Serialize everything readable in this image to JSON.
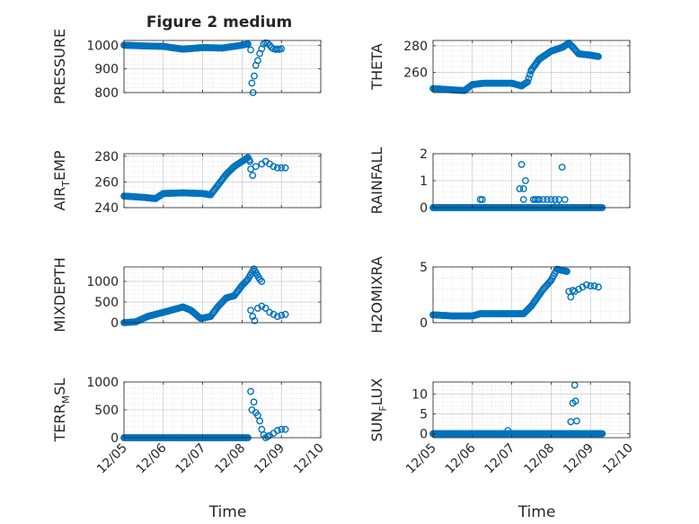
{
  "title": "Figure 2 medium",
  "xlabel": "Time",
  "xtick_labels": [
    "12/05",
    "12/06",
    "12/07",
    "12/08",
    "12/09",
    "12/10"
  ],
  "marker_color": "#0072BD",
  "chart_data": [
    {
      "id": "pressure",
      "type": "scatter",
      "ylabel": {
        "main": "PRESSURE"
      },
      "xlim": [
        0,
        5
      ],
      "ylim": [
        800,
        1020
      ],
      "yticks": [
        800,
        900,
        1000
      ],
      "ytick_labels": [
        "800",
        "900",
        "1000"
      ],
      "gen": {
        "kind": "segments",
        "step": 0.03,
        "segments": [
          [
            0,
            1000
          ],
          [
            0.5,
            997
          ],
          [
            1.0,
            995
          ],
          [
            1.5,
            983
          ],
          [
            2.0,
            990
          ],
          [
            2.5,
            988
          ],
          [
            3.0,
            1000
          ],
          [
            3.15,
            1005
          ]
        ]
      },
      "extra_points": [
        [
          3.22,
          980
        ],
        [
          3.25,
          840
        ],
        [
          3.28,
          800
        ],
        [
          3.31,
          870
        ],
        [
          3.35,
          915
        ],
        [
          3.4,
          935
        ],
        [
          3.45,
          965
        ],
        [
          3.5,
          985
        ],
        [
          3.55,
          1005
        ],
        [
          3.6,
          1010
        ],
        [
          3.65,
          1008
        ],
        [
          3.7,
          1000
        ],
        [
          3.75,
          990
        ],
        [
          3.8,
          985
        ],
        [
          3.85,
          982
        ],
        [
          3.9,
          983
        ],
        [
          3.95,
          982
        ],
        [
          4.0,
          985
        ]
      ]
    },
    {
      "id": "theta",
      "type": "scatter",
      "ylabel": {
        "main": "THETA"
      },
      "xlim": [
        0,
        5
      ],
      "ylim": [
        245,
        284
      ],
      "yticks": [
        260,
        280
      ],
      "ytick_labels": [
        "260",
        "280"
      ],
      "gen": {
        "kind": "segments",
        "step": 0.03,
        "segments": [
          [
            0,
            248
          ],
          [
            0.5,
            247
          ],
          [
            0.8,
            246.5
          ],
          [
            1.0,
            251
          ],
          [
            1.3,
            252
          ],
          [
            2.0,
            252
          ],
          [
            2.25,
            250
          ],
          [
            2.4,
            253
          ],
          [
            2.5,
            262
          ],
          [
            2.7,
            270
          ],
          [
            3.0,
            276
          ],
          [
            3.3,
            279
          ],
          [
            3.45,
            282
          ],
          [
            3.55,
            279
          ],
          [
            3.7,
            274
          ],
          [
            4.0,
            273
          ],
          [
            4.2,
            272
          ]
        ]
      },
      "extra_points": []
    },
    {
      "id": "air_temp",
      "type": "scatter",
      "ylabel": {
        "main": "AIR",
        "sub": "T",
        "rest": "EMP"
      },
      "xlim": [
        0,
        5
      ],
      "ylim": [
        240,
        282
      ],
      "yticks": [
        240,
        260,
        280
      ],
      "ytick_labels": [
        "240",
        "260",
        "280"
      ],
      "gen": {
        "kind": "segments",
        "step": 0.03,
        "segments": [
          [
            0,
            249
          ],
          [
            0.5,
            248
          ],
          [
            0.8,
            247
          ],
          [
            1.0,
            251
          ],
          [
            1.5,
            251.5
          ],
          [
            2.0,
            251
          ],
          [
            2.2,
            250
          ],
          [
            2.4,
            258
          ],
          [
            2.6,
            266
          ],
          [
            2.8,
            272
          ],
          [
            3.0,
            276
          ],
          [
            3.15,
            279
          ],
          [
            3.2,
            276
          ]
        ]
      },
      "extra_points": [
        [
          3.22,
          270
        ],
        [
          3.27,
          265
        ],
        [
          3.35,
          272
        ],
        [
          3.5,
          274
        ],
        [
          3.6,
          276
        ],
        [
          3.7,
          274
        ],
        [
          3.8,
          272
        ],
        [
          3.9,
          271
        ],
        [
          4.0,
          271
        ],
        [
          4.1,
          271
        ]
      ]
    },
    {
      "id": "rainfall",
      "type": "scatter",
      "ylabel": {
        "main": "RAINFALL"
      },
      "xlim": [
        0,
        5
      ],
      "ylim": [
        0,
        2
      ],
      "yticks": [
        0,
        1,
        2
      ],
      "ytick_labels": [
        "0",
        "1",
        "2"
      ],
      "gen": {
        "kind": "segments",
        "step": 0.025,
        "segments": [
          [
            0,
            0
          ],
          [
            4.3,
            0
          ]
        ]
      },
      "extra_points": [
        [
          1.2,
          0.3
        ],
        [
          1.25,
          0.3
        ],
        [
          2.2,
          0.7
        ],
        [
          2.25,
          1.6
        ],
        [
          2.3,
          0.7
        ],
        [
          2.35,
          1.0
        ],
        [
          2.3,
          0.3
        ],
        [
          2.55,
          0.3
        ],
        [
          2.6,
          0.3
        ],
        [
          2.65,
          0.3
        ],
        [
          2.7,
          0.3
        ],
        [
          2.8,
          0.3
        ],
        [
          2.9,
          0.3
        ],
        [
          3.0,
          0.3
        ],
        [
          3.1,
          0.3
        ],
        [
          3.15,
          0.1
        ],
        [
          3.2,
          0.3
        ],
        [
          3.28,
          1.5
        ],
        [
          3.35,
          0.3
        ]
      ]
    },
    {
      "id": "mixdepth",
      "type": "scatter",
      "ylabel": {
        "main": "MIXDEPTH"
      },
      "xlim": [
        0,
        5
      ],
      "ylim": [
        0,
        1350
      ],
      "yticks": [
        0,
        500,
        1000
      ],
      "ytick_labels": [
        "0",
        "500",
        "1000"
      ],
      "gen": {
        "kind": "segments",
        "step": 0.03,
        "segments": [
          [
            0,
            0
          ],
          [
            0.3,
            20
          ],
          [
            0.6,
            150
          ],
          [
            1.0,
            250
          ],
          [
            1.5,
            380
          ],
          [
            1.7,
            300
          ],
          [
            1.95,
            100
          ],
          [
            2.2,
            150
          ],
          [
            2.4,
            400
          ],
          [
            2.6,
            600
          ],
          [
            2.8,
            650
          ],
          [
            3.0,
            900
          ],
          [
            3.15,
            1050
          ],
          [
            3.3,
            1300
          ],
          [
            3.45,
            1050
          ]
        ]
      },
      "extra_points": [
        [
          3.5,
          1000
        ],
        [
          3.22,
          300
        ],
        [
          3.27,
          150
        ],
        [
          3.32,
          50
        ],
        [
          3.4,
          350
        ],
        [
          3.5,
          400
        ],
        [
          3.6,
          350
        ],
        [
          3.7,
          250
        ],
        [
          3.8,
          200
        ],
        [
          3.9,
          150
        ],
        [
          4.0,
          180
        ],
        [
          4.1,
          200
        ]
      ]
    },
    {
      "id": "h2omixra",
      "type": "scatter",
      "ylabel": {
        "main": "H2OMIXRA"
      },
      "xlim": [
        0,
        5
      ],
      "ylim": [
        0,
        5
      ],
      "yticks": [
        0,
        5
      ],
      "ytick_labels": [
        "0",
        "5"
      ],
      "gen": {
        "kind": "segments",
        "step": 0.03,
        "segments": [
          [
            0,
            0.7
          ],
          [
            0.5,
            0.6
          ],
          [
            1.0,
            0.6
          ],
          [
            1.2,
            0.8
          ],
          [
            2.0,
            0.8
          ],
          [
            2.3,
            0.8
          ],
          [
            2.5,
            1.5
          ],
          [
            2.8,
            3.0
          ],
          [
            3.0,
            3.8
          ],
          [
            3.15,
            4.8
          ],
          [
            3.4,
            4.6
          ]
        ]
      },
      "extra_points": [
        [
          3.45,
          2.8
        ],
        [
          3.5,
          2.3
        ],
        [
          3.55,
          2.9
        ],
        [
          3.6,
          2.8
        ],
        [
          3.7,
          3.0
        ],
        [
          3.8,
          3.2
        ],
        [
          3.9,
          3.4
        ],
        [
          4.0,
          3.3
        ],
        [
          4.1,
          3.3
        ],
        [
          4.2,
          3.2
        ]
      ]
    },
    {
      "id": "terr_msl",
      "type": "scatter",
      "ylabel": {
        "main": "TERR",
        "sub": "M",
        "rest": "SL"
      },
      "xlim": [
        0,
        5
      ],
      "ylim": [
        0,
        1000
      ],
      "yticks": [
        0,
        500,
        1000
      ],
      "ytick_labels": [
        "0",
        "500",
        "1000"
      ],
      "gen": {
        "kind": "segments",
        "step": 0.03,
        "segments": [
          [
            0,
            0
          ],
          [
            3.15,
            0
          ]
        ]
      },
      "extra_points": [
        [
          3.22,
          830
        ],
        [
          3.25,
          500
        ],
        [
          3.3,
          640
        ],
        [
          3.35,
          450
        ],
        [
          3.4,
          400
        ],
        [
          3.45,
          300
        ],
        [
          3.5,
          150
        ],
        [
          3.55,
          50
        ],
        [
          3.6,
          0
        ],
        [
          3.65,
          20
        ],
        [
          3.7,
          40
        ],
        [
          3.8,
          80
        ],
        [
          3.9,
          130
        ],
        [
          4.0,
          150
        ],
        [
          4.1,
          150
        ]
      ]
    },
    {
      "id": "sun_flux",
      "type": "scatter",
      "ylabel": {
        "main": "SUN",
        "sub": "F",
        "rest": "LUX"
      },
      "xlim": [
        0,
        5
      ],
      "ylim": [
        -1,
        13
      ],
      "yticks": [
        0,
        5,
        10
      ],
      "ytick_labels": [
        "0",
        "5",
        "10"
      ],
      "gen": {
        "kind": "segments",
        "step": 0.025,
        "segments": [
          [
            0,
            0
          ],
          [
            4.3,
            0
          ]
        ]
      },
      "extra_points": [
        [
          1.9,
          0.8
        ],
        [
          3.5,
          3.0
        ],
        [
          3.55,
          7.7
        ],
        [
          3.6,
          12.2
        ],
        [
          3.62,
          8.2
        ],
        [
          3.65,
          3.2
        ]
      ]
    }
  ]
}
